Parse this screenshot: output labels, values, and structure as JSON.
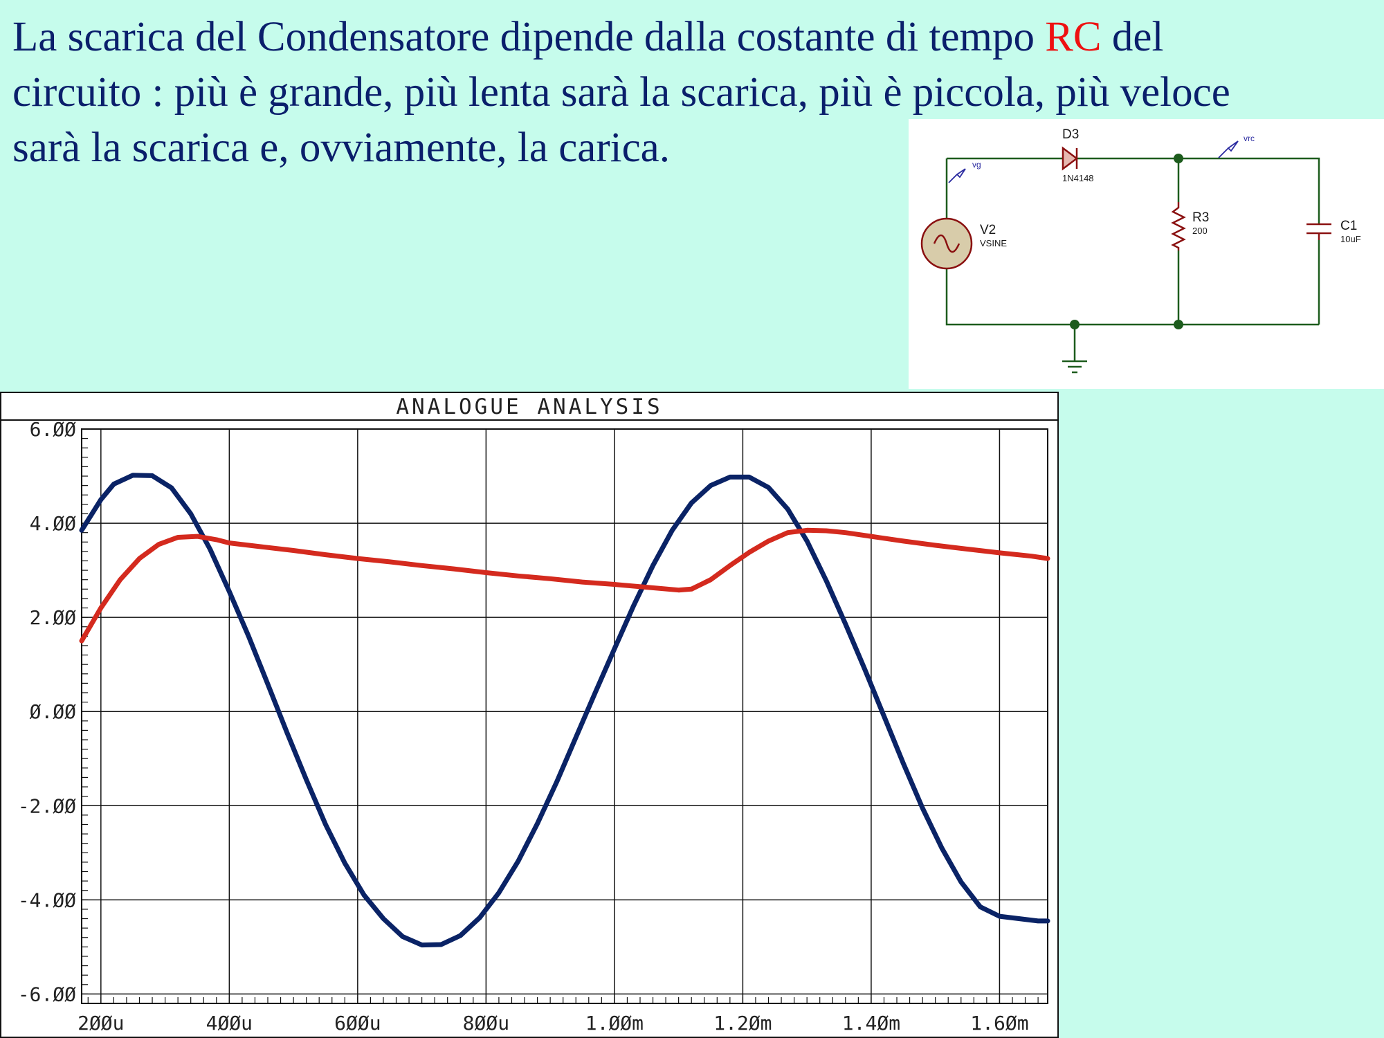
{
  "heading": {
    "part1": "La scarica del Condensatore dipende dalla costante di tempo ",
    "highlight": "RC",
    "part2": " del circuito : più è grande, più lenta sarà la scarica, più è piccola, più veloce sarà la scarica e, ovviamente, la carica.",
    "highlight_color": "#ee1111",
    "text_color": "#0a1f6b"
  },
  "circuit": {
    "diode": {
      "ref": "D3",
      "value": "1N4148"
    },
    "source": {
      "ref": "V2",
      "value": "VSINE"
    },
    "resistor": {
      "ref": "R3",
      "value": "200"
    },
    "capacitor": {
      "ref": "C1",
      "value": "10uF"
    },
    "probe_vg": "vg",
    "probe_vrc": "vrc",
    "wire_color": "#1d5c1d",
    "component_color": "#8a1010"
  },
  "chart_data": {
    "type": "line",
    "title": "ANALOGUE ANALYSIS",
    "xlim": [
      0.00017,
      0.001675
    ],
    "ylim": [
      -6.2,
      6.0
    ],
    "yticks": [
      6,
      4,
      2,
      0,
      -2,
      -4,
      -6
    ],
    "ytick_labels": [
      "6.ØØ",
      "4.ØØ",
      "2.ØØ",
      "Ø.ØØ",
      "-2.ØØ",
      "-4.ØØ",
      "-6.ØØ"
    ],
    "xticks": [
      0.0002,
      0.0004,
      0.0006,
      0.0008,
      0.001,
      0.0012,
      0.0014,
      0.0016
    ],
    "xtick_labels": [
      "2ØØu",
      "4ØØu",
      "6ØØu",
      "8ØØu",
      "1.ØØm",
      "1.2Øm",
      "1.4Øm",
      "1.6Øm"
    ],
    "grid": true,
    "series": [
      {
        "color": "#0a2366",
        "x": [
          0.00017,
          0.0002,
          0.00022,
          0.00025,
          0.00028,
          0.00031,
          0.00034,
          0.00037,
          0.0004,
          0.00043,
          0.00046,
          0.00049,
          0.00052,
          0.00055,
          0.00058,
          0.00061,
          0.00064,
          0.00067,
          0.0007,
          0.00073,
          0.00076,
          0.00079,
          0.00082,
          0.00085,
          0.00088,
          0.00091,
          0.00094,
          0.00097,
          0.001,
          0.00103,
          0.00106,
          0.00109,
          0.00112,
          0.00115,
          0.00118,
          0.00121,
          0.00124,
          0.00127,
          0.0013,
          0.00133,
          0.00136,
          0.00139,
          0.00142,
          0.00145,
          0.00148,
          0.00151,
          0.00154,
          0.00157,
          0.0016,
          0.00163,
          0.00166,
          0.001675
        ],
        "values": [
          3.85,
          4.5,
          4.83,
          5.02,
          5.01,
          4.75,
          4.2,
          3.45,
          2.55,
          1.6,
          0.58,
          -0.45,
          -1.45,
          -2.4,
          -3.22,
          -3.9,
          -4.4,
          -4.78,
          -4.96,
          -4.95,
          -4.76,
          -4.38,
          -3.85,
          -3.18,
          -2.38,
          -1.5,
          -0.55,
          0.4,
          1.33,
          2.25,
          3.1,
          3.85,
          4.43,
          4.8,
          4.98,
          4.98,
          4.76,
          4.3,
          3.62,
          2.78,
          1.86,
          0.9,
          -0.1,
          -1.1,
          -2.05,
          -2.9,
          -3.62,
          -4.15,
          -4.35,
          -4.4,
          -4.45,
          -4.45
        ]
      },
      {
        "color": "#d42a1e",
        "x": [
          0.00017,
          0.0002,
          0.00023,
          0.00026,
          0.00029,
          0.00032,
          0.00035,
          0.00038,
          0.0004,
          0.00045,
          0.0005,
          0.00055,
          0.0006,
          0.00065,
          0.0007,
          0.00075,
          0.0008,
          0.00085,
          0.0009,
          0.00095,
          0.001,
          0.00105,
          0.0011,
          0.00112,
          0.00115,
          0.00118,
          0.00121,
          0.00124,
          0.00127,
          0.0013,
          0.00133,
          0.00136,
          0.0014,
          0.00145,
          0.0015,
          0.00155,
          0.0016,
          0.00165,
          0.001675
        ],
        "values": [
          1.5,
          2.2,
          2.8,
          3.25,
          3.55,
          3.7,
          3.72,
          3.65,
          3.58,
          3.5,
          3.42,
          3.33,
          3.25,
          3.18,
          3.1,
          3.03,
          2.95,
          2.88,
          2.82,
          2.75,
          2.7,
          2.64,
          2.58,
          2.6,
          2.8,
          3.1,
          3.38,
          3.62,
          3.8,
          3.85,
          3.84,
          3.8,
          3.72,
          3.62,
          3.53,
          3.45,
          3.37,
          3.3,
          3.25
        ]
      }
    ]
  }
}
